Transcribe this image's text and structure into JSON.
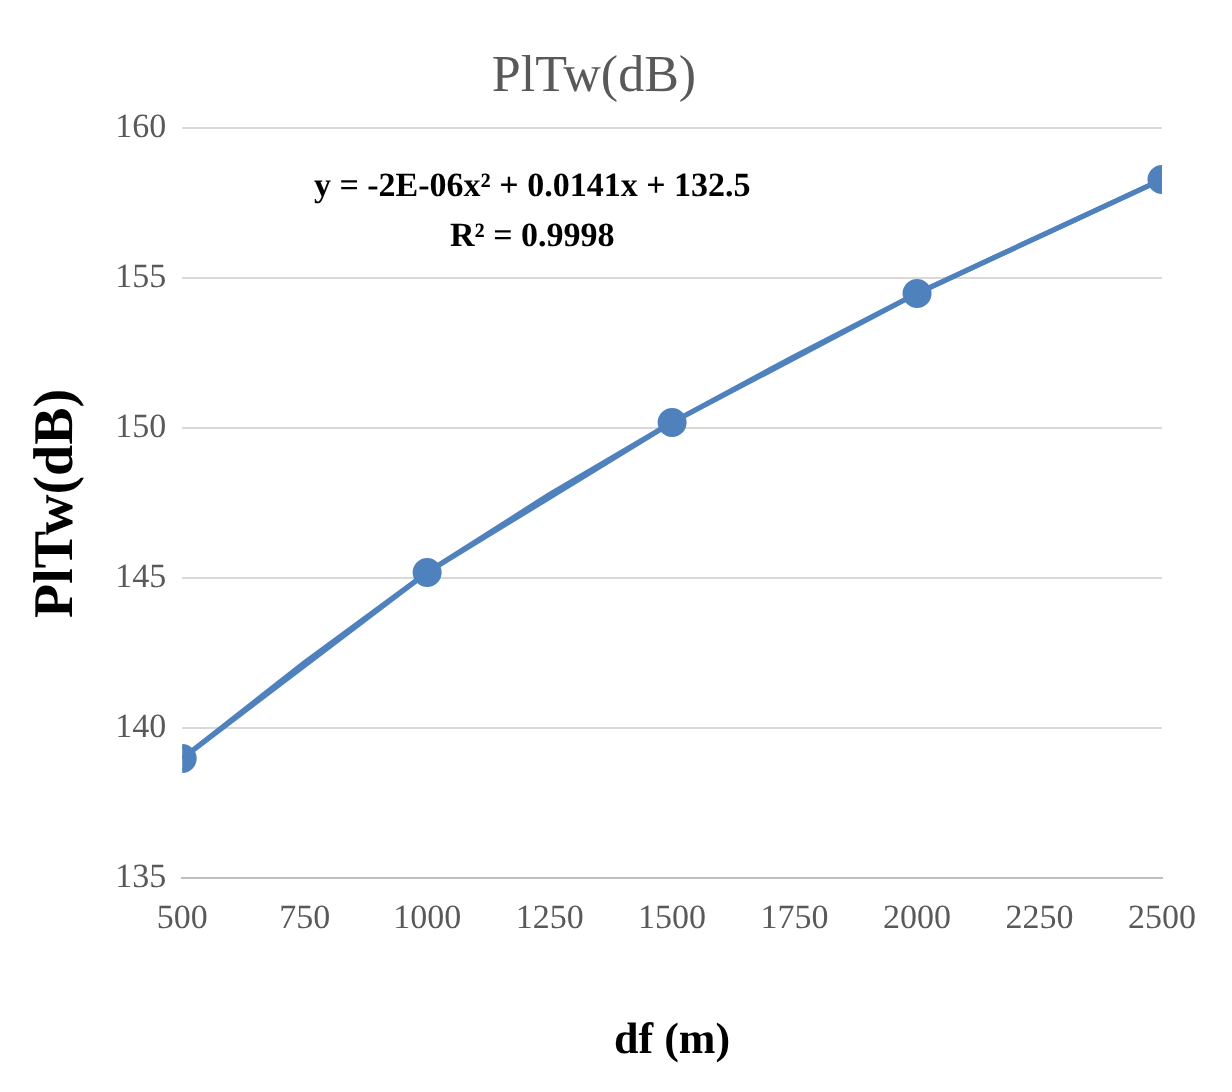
{
  "chart_data": {
    "type": "line",
    "title": "PlTw(dB)",
    "xlabel": "df (m)",
    "ylabel": "PlTw(dB)",
    "x": [
      500,
      1000,
      1500,
      2000,
      2500
    ],
    "series": [
      {
        "color": "#4f81bd",
        "values": [
          139.0,
          145.2,
          150.2,
          154.5,
          158.3
        ],
        "marker": "circle"
      },
      {
        "color": "#4f81bd",
        "x": [
          500,
          750,
          1000,
          1250,
          1500,
          1750,
          2000,
          2250,
          2500
        ],
        "values": [
          139.0,
          142.2,
          145.2,
          147.8,
          150.2,
          152.4,
          154.5,
          156.4,
          158.3
        ],
        "marker": "none"
      }
    ],
    "xlim": [
      500,
      2500
    ],
    "xticks": [
      500,
      750,
      1000,
      1250,
      1500,
      1750,
      2000,
      2250,
      2500
    ],
    "ylim": [
      135,
      160
    ],
    "yticks": [
      135,
      140,
      145,
      150,
      155,
      160
    ],
    "grid": "y",
    "legend": false,
    "annotations": [
      "y = -2E-06x² + 0.0141x + 132.5",
      "R² = 0.9998"
    ]
  }
}
